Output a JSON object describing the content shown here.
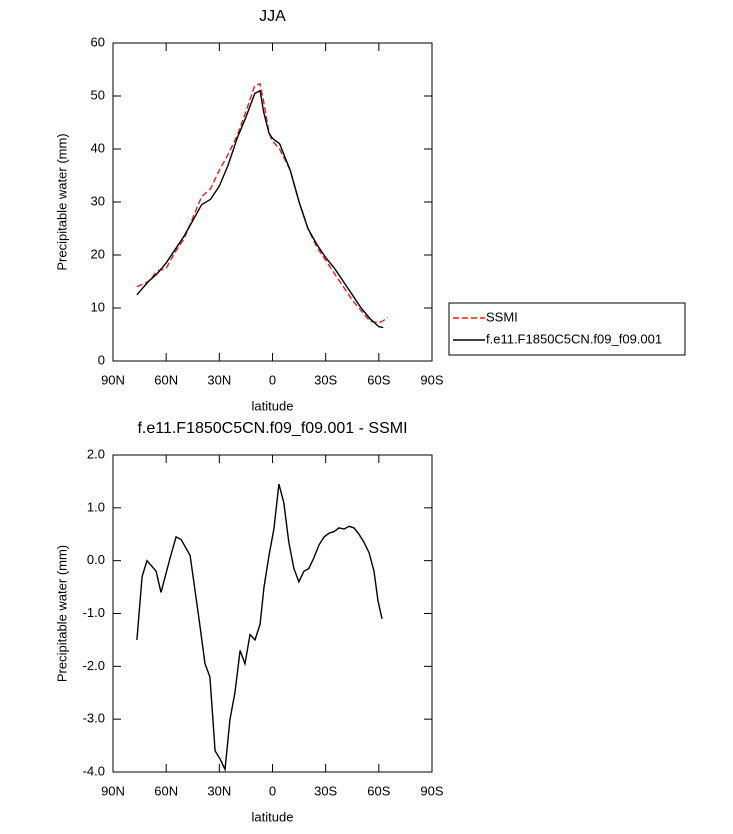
{
  "chart_data": [
    {
      "type": "line",
      "title": "JJA",
      "x_label": "latitude",
      "y_label": "Precipitable water (mm)",
      "x": [
        76.5,
        70,
        65,
        60,
        55,
        50,
        45,
        40,
        35,
        30,
        25,
        20,
        15,
        10,
        7,
        5,
        2,
        0,
        -4,
        -10,
        -15,
        -20,
        -25,
        -30,
        -35,
        -40,
        -45,
        -50,
        -55,
        -60,
        -62.5,
        -65
      ],
      "xlim": [
        90,
        -90
      ],
      "xticks": [
        {
          "value": 90,
          "label": "90N"
        },
        {
          "value": 60,
          "label": "60N"
        },
        {
          "value": 30,
          "label": "30N"
        },
        0,
        {
          "value": -30,
          "label": "30S"
        },
        {
          "value": -60,
          "label": "60S"
        },
        {
          "value": -90,
          "label": "90S"
        }
      ],
      "ylim": [
        0,
        60
      ],
      "yticks": [
        0,
        10,
        20,
        30,
        40,
        50,
        60
      ],
      "legend": "outside-right",
      "series": [
        {
          "name": "SSMI",
          "color": "#e0201b",
          "dash": true,
          "values": [
            14,
            15,
            17,
            17.5,
            20.5,
            23,
            27,
            31,
            32.5,
            36,
            39,
            42.5,
            47,
            52,
            52.3,
            49,
            43,
            41.5,
            40,
            36,
            30,
            25,
            21.5,
            19,
            16.5,
            14,
            11.5,
            9.5,
            7.5,
            7.2,
            7.6,
            8.2
          ]
        },
        {
          "name": "f.e11.F1850C5CN.f09_f09.001",
          "color": "#000000",
          "dash": false,
          "values": [
            12.5,
            15,
            16.5,
            18.5,
            21,
            23.5,
            26.5,
            29.5,
            30.5,
            33,
            37,
            42,
            46,
            50.5,
            51,
            47,
            43,
            42,
            41,
            36,
            30,
            25,
            22,
            19.5,
            17.5,
            15,
            12.5,
            10,
            8,
            6.5,
            6.3,
            null
          ]
        }
      ]
    },
    {
      "type": "line",
      "title": "f.e11.F1850C5CN.f09_f09.001 - SSMI",
      "x_label": "latitude",
      "y_label": "Precipitable water (mm)",
      "x": [
        76.5,
        73.6,
        70.8,
        65.7,
        62.9,
        57.8,
        54.4,
        51.6,
        46.5,
        41.5,
        38.1,
        35.3,
        32.4,
        29.6,
        26.8,
        24.0,
        21.2,
        18.3,
        15.5,
        12.7,
        9.9,
        7.0,
        4.8,
        2.0,
        -0.8,
        -3.6,
        -6.4,
        -9.2,
        -12.1,
        -14.9,
        -17.7,
        -20.5,
        -23.3,
        -26.3,
        -29.1,
        -31.9,
        -34.7,
        -37.5,
        -40.4,
        -43.2,
        -46.0,
        -48.8,
        -51.6,
        -54.5,
        -57.3,
        -59.5,
        -61.8
      ],
      "xlim": [
        90,
        -90
      ],
      "xticks": [
        {
          "value": 90,
          "label": "90N"
        },
        {
          "value": 60,
          "label": "60N"
        },
        {
          "value": 30,
          "label": "30N"
        },
        0,
        {
          "value": -30,
          "label": "30S"
        },
        {
          "value": -60,
          "label": "60S"
        },
        {
          "value": -90,
          "label": "90S"
        }
      ],
      "ylim": [
        -4,
        2
      ],
      "yticks": [
        {
          "value": -4,
          "label": "-4.0"
        },
        {
          "value": -3,
          "label": "-3.0"
        },
        {
          "value": -2,
          "label": "-2.0"
        },
        {
          "value": -1,
          "label": "-1.0"
        },
        {
          "value": 0,
          "label": "0.0"
        },
        {
          "value": 1,
          "label": "1.0"
        },
        {
          "value": 2,
          "label": "2.0"
        }
      ],
      "color": "#000000",
      "values": [
        -1.5,
        -0.3,
        0,
        -0.2,
        -0.6,
        0.05,
        0.45,
        0.4,
        0.1,
        -1.1,
        -1.95,
        -2.2,
        -3.6,
        -3.75,
        -3.95,
        -3.0,
        -2.5,
        -1.7,
        -1.95,
        -1.4,
        -1.5,
        -1.2,
        -0.5,
        0.1,
        0.6,
        1.45,
        1.1,
        0.35,
        -0.15,
        -0.4,
        -0.2,
        -0.15,
        0.05,
        0.3,
        0.45,
        0.52,
        0.55,
        0.62,
        0.6,
        0.65,
        0.62,
        0.5,
        0.35,
        0.15,
        -0.2,
        -0.75,
        -1.1
      ]
    }
  ]
}
